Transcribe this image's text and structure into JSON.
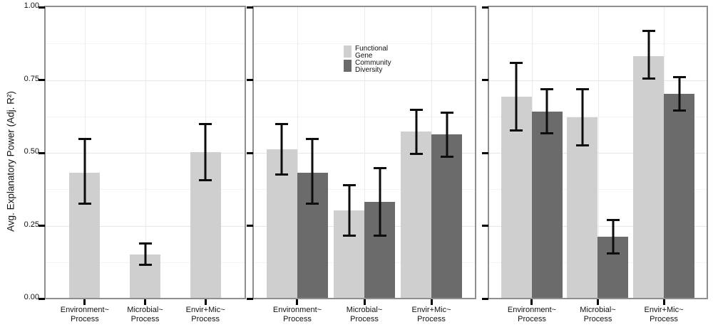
{
  "chart_data": {
    "type": "bar",
    "title": "",
    "xlabel": "",
    "ylabel": "Avg. Explanatory Power (Adj. R²)",
    "ylim": [
      0,
      1
    ],
    "grid": "on",
    "legend_position": "inside-top-left-of-middle-panel",
    "yticks": [
      {
        "v": 0.0,
        "label": "0.00"
      },
      {
        "v": 0.25,
        "label": "0.25"
      },
      {
        "v": 0.5,
        "label": "0.50"
      },
      {
        "v": 0.75,
        "label": "0.75"
      },
      {
        "v": 1.0,
        "label": "1.00"
      }
    ],
    "minor_grid_values": [
      0.125,
      0.375,
      0.625,
      0.875
    ],
    "major_grid_values": [
      0.25,
      0.5,
      0.75
    ],
    "categories": [
      {
        "line1": "Environment~",
        "line2": "Process"
      },
      {
        "line1": "Microbial~",
        "line2": "Process"
      },
      {
        "line1": "Envir+Mic~",
        "line2": "Process"
      }
    ],
    "colors": {
      "functional_gene": "#cfcfcf",
      "community_diversity": "#6b6b6b",
      "error_bar": "#0d0d0d"
    },
    "legend": {
      "entries": [
        {
          "name": "Functional Gene",
          "label_lines": [
            "Functional",
            "Gene"
          ],
          "color": "#cfcfcf"
        },
        {
          "name": "Community Diversity",
          "label_lines": [
            "Community",
            "Diversity"
          ],
          "color": "#6b6b6b"
        }
      ]
    },
    "panels": [
      {
        "series": [
          {
            "name": "Functional Gene",
            "color": "#cfcfcf",
            "values": [
              0.43,
              0.15,
              0.5
            ],
            "err_low": [
              0.32,
              0.11,
              0.4
            ],
            "err_high": [
              0.55,
              0.19,
              0.6
            ]
          }
        ]
      },
      {
        "series": [
          {
            "name": "Functional Gene",
            "color": "#cfcfcf",
            "values": [
              0.51,
              0.3,
              0.57
            ],
            "err_low": [
              0.42,
              0.21,
              0.49
            ],
            "err_high": [
              0.6,
              0.39,
              0.65
            ]
          },
          {
            "name": "Community Diversity",
            "color": "#6b6b6b",
            "values": [
              0.43,
              0.33,
              0.56
            ],
            "err_low": [
              0.32,
              0.21,
              0.48
            ],
            "err_high": [
              0.55,
              0.45,
              0.64
            ]
          }
        ]
      },
      {
        "series": [
          {
            "name": "Functional Gene",
            "color": "#cfcfcf",
            "values": [
              0.69,
              0.62,
              0.83
            ],
            "err_low": [
              0.57,
              0.52,
              0.75
            ],
            "err_high": [
              0.81,
              0.72,
              0.92
            ]
          },
          {
            "name": "Community Diversity",
            "color": "#6b6b6b",
            "values": [
              0.64,
              0.21,
              0.7
            ],
            "err_low": [
              0.56,
              0.15,
              0.64
            ],
            "err_high": [
              0.72,
              0.27,
              0.76
            ]
          }
        ]
      }
    ]
  }
}
